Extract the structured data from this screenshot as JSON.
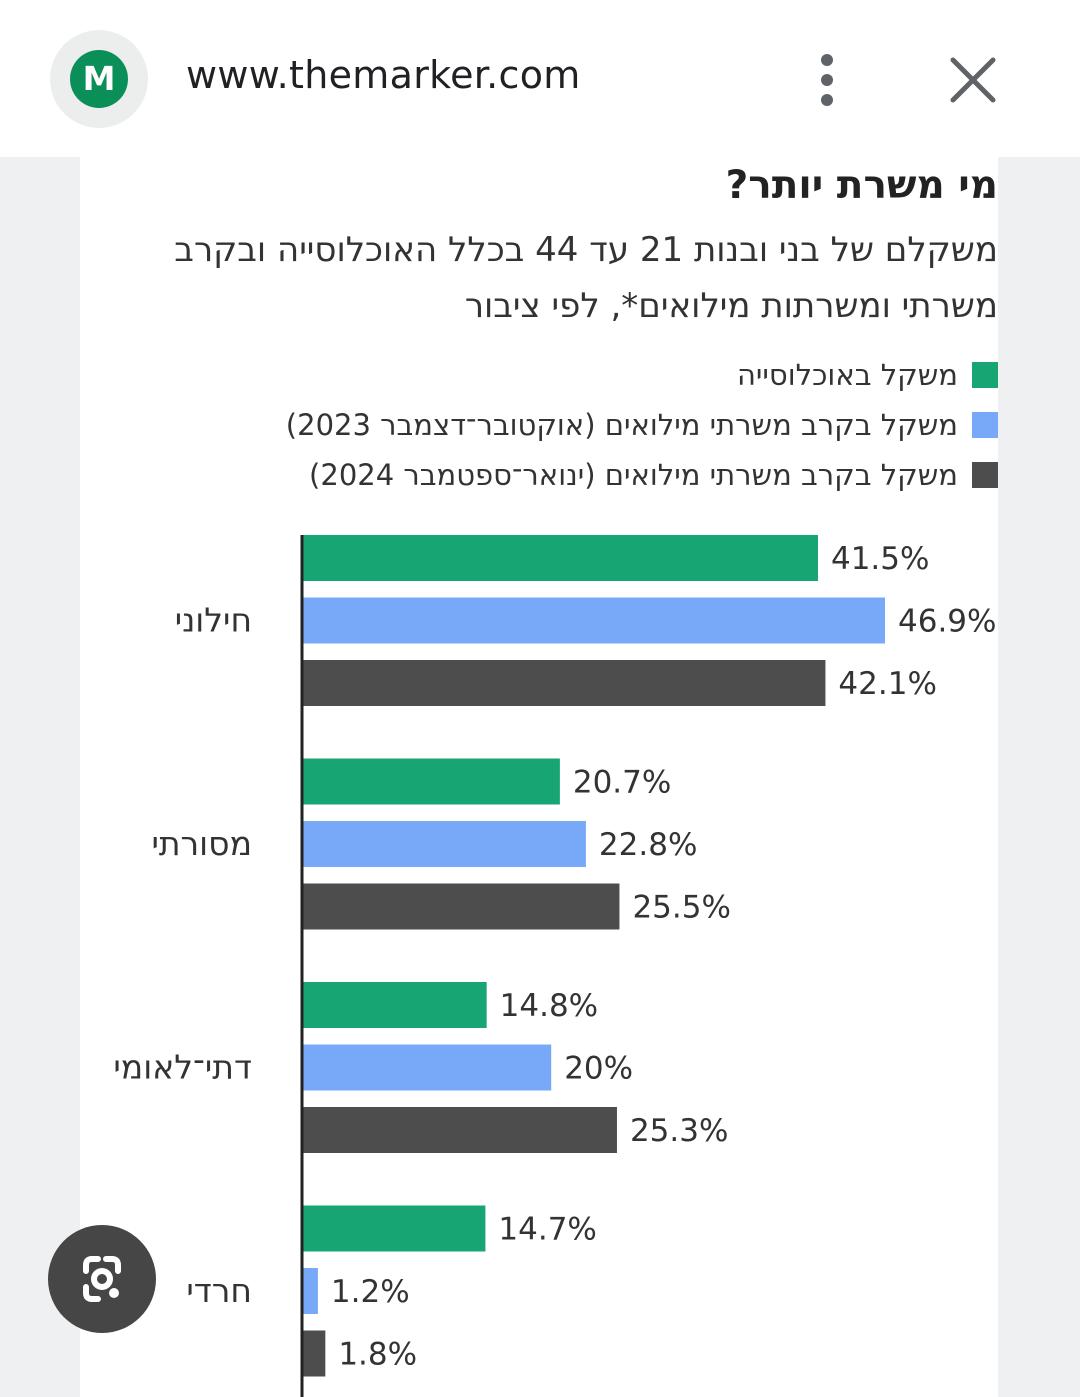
{
  "browser": {
    "url": "www.themarker.com",
    "site_icon_letter": "M",
    "icons": {
      "menu": "more-vert-icon",
      "close": "close-icon",
      "lens": "google-lens-icon"
    }
  },
  "chart_data": {
    "type": "bar",
    "orientation": "horizontal",
    "title": "מי משרת יותר?",
    "subtitle": "משקלם של בני ובנות 21 עד 44 בכלל האוכלוסייה ובקרב משרתי ומשרתות מילואים*, לפי ציבור",
    "categories": [
      "חילוני",
      "מסורתי",
      "דתי־לאומי",
      "חרדי"
    ],
    "series": [
      {
        "name": "משקל באוכלוסייה",
        "color": "#17a673",
        "values": [
          41.5,
          20.7,
          14.8,
          14.7
        ],
        "labels": [
          "41.5%",
          "20.7%",
          "14.8%",
          "14.7%"
        ]
      },
      {
        "name": "משקל בקרב משרתי מילואים (אוקטובר־דצמבר 2023)",
        "color": "#78a8f8",
        "values": [
          46.9,
          22.8,
          20,
          1.2
        ],
        "labels": [
          "46.9%",
          "22.8%",
          "20%",
          "1.2%"
        ]
      },
      {
        "name": "משקל בקרב משרתי מילואים (ינואר־ספטמבר 2024)",
        "color": "#4d4d4d",
        "values": [
          42.1,
          25.5,
          25.3,
          1.8
        ],
        "labels": [
          "42.1%",
          "25.5%",
          "25.3%",
          "1.8%"
        ]
      }
    ],
    "xlim": [
      0,
      50
    ],
    "grid": false,
    "legend": "top-right"
  }
}
